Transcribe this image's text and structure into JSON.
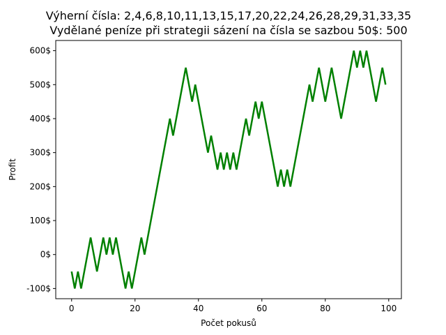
{
  "chart_data": {
    "type": "line",
    "title_line1": "Výherní čísla: 2,4,6,8,10,11,13,15,17,20,22,24,26,28,29,31,33,35",
    "title_line2": "Vydělané peníze při strategii sázení na čísla se sazbou 50$: 500",
    "xlabel": "Počet pokusů",
    "ylabel": "Profit",
    "xlim": [
      -5,
      104
    ],
    "ylim": [
      -130,
      630
    ],
    "x_ticks": [
      0,
      20,
      40,
      60,
      80,
      100
    ],
    "y_ticks": [
      -100,
      0,
      100,
      200,
      300,
      400,
      500,
      600
    ],
    "y_tick_labels": [
      "-100$",
      "0$",
      "100$",
      "200$",
      "300$",
      "400$",
      "500$",
      "600$"
    ],
    "grid": false,
    "line_color": "#008000",
    "series": [
      {
        "values": [
          -50,
          -100,
          -50,
          -100,
          -50,
          0,
          50,
          0,
          -50,
          0,
          50,
          0,
          50,
          0,
          50,
          0,
          -50,
          -100,
          -50,
          -100,
          -50,
          0,
          50,
          0,
          50,
          100,
          150,
          200,
          250,
          300,
          350,
          400,
          350,
          400,
          450,
          500,
          550,
          500,
          450,
          500,
          450,
          400,
          350,
          300,
          350,
          300,
          250,
          300,
          250,
          300,
          250,
          300,
          250,
          300,
          350,
          400,
          350,
          400,
          450,
          400,
          450,
          400,
          350,
          300,
          250,
          200,
          250,
          200,
          250,
          200,
          250,
          300,
          350,
          400,
          450,
          500,
          450,
          500,
          550,
          500,
          450,
          500,
          550,
          500,
          450,
          400,
          450,
          500,
          550,
          600,
          550,
          600,
          550,
          600,
          550,
          500,
          450,
          500,
          550,
          500
        ]
      }
    ]
  }
}
